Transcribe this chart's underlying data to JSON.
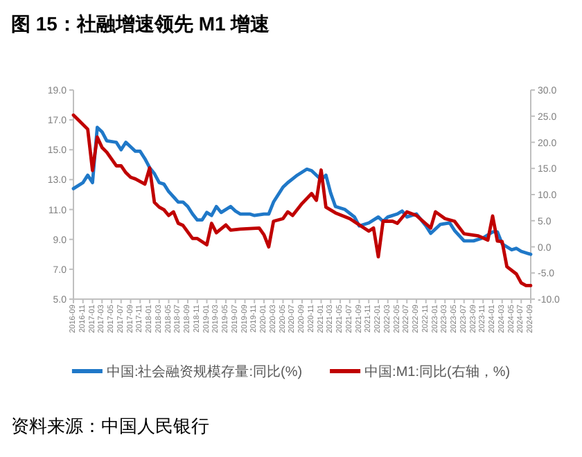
{
  "chart_data": {
    "type": "line",
    "title": "图 15：社融增速领先 M1 增速",
    "annotations": [
      "资料来源：中国人民银行"
    ],
    "legend": "bottom",
    "xlim": [
      "2016-09",
      "2024-09"
    ],
    "xticks": [
      {
        "value": "2016-09",
        "label": "2016-09"
      },
      {
        "value": "2016-11",
        "label": "2016-11"
      },
      {
        "value": "2017-01",
        "label": "2017-01"
      },
      {
        "value": "2017-03",
        "label": "2017-03"
      },
      {
        "value": "2017-05",
        "label": "2017-05"
      },
      {
        "value": "2017-07",
        "label": "2017-07"
      },
      {
        "value": "2017-09",
        "label": "2017-09"
      },
      {
        "value": "2017-11",
        "label": "2017-11"
      },
      {
        "value": "2018-01",
        "label": "2018-01"
      },
      {
        "value": "2018-03",
        "label": "2018-03"
      },
      {
        "value": "2018-05",
        "label": "2018-05"
      },
      {
        "value": "2018-07",
        "label": "2018-07"
      },
      {
        "value": "2018-09",
        "label": "2018-09"
      },
      {
        "value": "2018-11",
        "label": "2018-11"
      },
      {
        "value": "2019-01",
        "label": "2019-01"
      },
      {
        "value": "2019-03",
        "label": "2019-03"
      },
      {
        "value": "2019-05",
        "label": "2019-05"
      },
      {
        "value": "2019-07",
        "label": "2019-07"
      },
      {
        "value": "2019-09",
        "label": "2019-09"
      },
      {
        "value": "2019-11",
        "label": "2019-11"
      },
      {
        "value": "2020-01",
        "label": "2020-01"
      },
      {
        "value": "2020-03",
        "label": "2020-03"
      },
      {
        "value": "2020-05",
        "label": "2020-05"
      },
      {
        "value": "2020-07",
        "label": "2020-07"
      },
      {
        "value": "2020-09",
        "label": "2020-09"
      },
      {
        "value": "2020-11",
        "label": "2020-11"
      },
      {
        "value": "2021-01",
        "label": "2021-01"
      },
      {
        "value": "2021-03",
        "label": "2021-03"
      },
      {
        "value": "2021-05",
        "label": "2021-05"
      },
      {
        "value": "2021-07",
        "label": "2021-07"
      },
      {
        "value": "2021-09",
        "label": "2021-09"
      },
      {
        "value": "2021-11",
        "label": "2021-11"
      },
      {
        "value": "2022-01",
        "label": "2022-01"
      },
      {
        "value": "2022-03",
        "label": "2022-03"
      },
      {
        "value": "2022-05",
        "label": "2022-05"
      },
      {
        "value": "2022-07",
        "label": "2022-07"
      },
      {
        "value": "2022-09",
        "label": "2022-09"
      },
      {
        "value": "2022-11",
        "label": "2022-11"
      },
      {
        "value": "2023-01",
        "label": "2023-01"
      },
      {
        "value": "2023-03",
        "label": "2023-03"
      },
      {
        "value": "2023-05",
        "label": "2023-05"
      },
      {
        "value": "2023-07",
        "label": "2023-07"
      },
      {
        "value": "2023-09",
        "label": "2023-09"
      },
      {
        "value": "2023-11",
        "label": "2023-11"
      },
      {
        "value": "2024-01",
        "label": "2024-01"
      },
      {
        "value": "2024-03",
        "label": "2024-03"
      },
      {
        "value": "2024-05",
        "label": "2024-05"
      },
      {
        "value": "2024-07",
        "label": "2024-07"
      },
      {
        "value": "2024-09",
        "label": "2024-09"
      }
    ],
    "ylim": [
      5,
      19
    ],
    "yticks": [
      {
        "value": 5,
        "label": "5.0"
      },
      {
        "value": 7,
        "label": "7.0"
      },
      {
        "value": 9,
        "label": "9.0"
      },
      {
        "value": 11,
        "label": "11.0"
      },
      {
        "value": 13,
        "label": "13.0"
      },
      {
        "value": 15,
        "label": "15.0"
      },
      {
        "value": 17,
        "label": "17.0"
      },
      {
        "value": 19,
        "label": "19.0"
      }
    ],
    "y2lim": [
      -10,
      30
    ],
    "y2ticks": [
      {
        "value": -10,
        "label": "-10.0"
      },
      {
        "value": -5,
        "label": "-5.0"
      },
      {
        "value": 0,
        "label": "0.0"
      },
      {
        "value": 5,
        "label": "5.0"
      },
      {
        "value": 10,
        "label": "10.0"
      },
      {
        "value": 15,
        "label": "15.0"
      },
      {
        "value": 20,
        "label": "20.0"
      },
      {
        "value": 25,
        "label": "25.0"
      },
      {
        "value": 30,
        "label": "30.0"
      }
    ],
    "series": [
      {
        "name": "中国:社会融资规模存量:同比(%)",
        "color": "#1f78c8",
        "x": [
          "2016-09",
          "2016-11",
          "2016-12",
          "2017-01",
          "2017-02",
          "2017-03",
          "2017-04",
          "2017-06",
          "2017-07",
          "2017-08",
          "2017-10",
          "2017-11",
          "2017-12",
          "2018-01",
          "2018-02",
          "2018-03",
          "2018-04",
          "2018-05",
          "2018-07",
          "2018-08",
          "2018-09",
          "2018-10",
          "2018-11",
          "2018-12",
          "2019-01",
          "2019-02",
          "2019-03",
          "2019-04",
          "2019-06",
          "2019-07",
          "2019-08",
          "2019-10",
          "2019-11",
          "2020-01",
          "2020-02",
          "2020-03",
          "2020-04",
          "2020-05",
          "2020-06",
          "2020-08",
          "2020-10",
          "2020-11",
          "2020-12",
          "2021-01",
          "2021-02",
          "2021-03",
          "2021-04",
          "2021-06",
          "2021-08",
          "2021-09",
          "2021-11",
          "2022-01",
          "2022-02",
          "2022-03",
          "2022-05",
          "2022-06",
          "2022-07",
          "2022-09",
          "2022-11",
          "2022-12",
          "2023-02",
          "2023-04",
          "2023-05",
          "2023-07",
          "2023-09",
          "2023-11",
          "2024-01",
          "2024-02",
          "2024-03",
          "2024-04",
          "2024-05",
          "2024-06",
          "2024-07",
          "2024-09"
        ],
        "values": [
          12.4,
          12.8,
          13.3,
          12.8,
          16.5,
          16.2,
          15.6,
          15.5,
          15.0,
          15.5,
          14.9,
          14.9,
          14.4,
          13.8,
          13.4,
          12.8,
          12.7,
          12.2,
          11.5,
          11.5,
          11.2,
          10.7,
          10.3,
          10.3,
          10.8,
          10.6,
          11.2,
          10.8,
          11.2,
          10.9,
          10.7,
          10.7,
          10.6,
          10.7,
          10.7,
          11.5,
          12.0,
          12.5,
          12.8,
          13.3,
          13.7,
          13.6,
          13.3,
          13.0,
          13.3,
          12.1,
          11.2,
          11.0,
          10.5,
          9.9,
          10.1,
          10.5,
          10.2,
          10.5,
          10.7,
          10.9,
          10.5,
          10.7,
          9.9,
          9.4,
          10.0,
          10.1,
          9.6,
          8.9,
          8.9,
          9.1,
          9.5,
          9.5,
          8.7,
          8.5,
          8.3,
          8.4,
          8.2,
          8.0
        ]
      },
      {
        "name": "中国:M1:同比(右轴，%)",
        "color": "#c00000",
        "axis": "y2",
        "x": [
          "2016-09",
          "2016-10",
          "2016-12",
          "2017-01",
          "2017-02",
          "2017-03",
          "2017-04",
          "2017-06",
          "2017-07",
          "2017-08",
          "2017-09",
          "2017-10",
          "2017-12",
          "2018-01",
          "2018-02",
          "2018-03",
          "2018-04",
          "2018-05",
          "2018-06",
          "2018-07",
          "2018-08",
          "2018-10",
          "2018-11",
          "2019-01",
          "2019-02",
          "2019-03",
          "2019-05",
          "2019-06",
          "2019-08",
          "2019-12",
          "2020-01",
          "2020-02",
          "2020-03",
          "2020-05",
          "2020-06",
          "2020-07",
          "2020-09",
          "2020-11",
          "2020-12",
          "2021-01",
          "2021-02",
          "2021-04",
          "2021-07",
          "2021-10",
          "2021-11",
          "2021-12",
          "2022-01",
          "2022-02",
          "2022-04",
          "2022-05",
          "2022-07",
          "2022-09",
          "2022-12",
          "2023-01",
          "2023-03",
          "2023-05",
          "2023-07",
          "2023-10",
          "2023-12",
          "2024-01",
          "2024-02",
          "2024-03",
          "2024-04",
          "2024-06",
          "2024-07",
          "2024-08",
          "2024-09"
        ],
        "values": [
          25.2,
          24.3,
          22.5,
          14.6,
          21.0,
          19.0,
          18.1,
          15.5,
          15.5,
          14.2,
          13.3,
          13.0,
          12.0,
          15.1,
          8.5,
          7.6,
          7.1,
          6.0,
          6.7,
          4.5,
          4.1,
          1.6,
          1.6,
          0.4,
          4.5,
          2.7,
          4.2,
          3.2,
          3.4,
          3.6,
          2.3,
          0.0,
          4.9,
          5.4,
          6.7,
          6.0,
          8.3,
          10.2,
          8.9,
          14.7,
          7.6,
          6.5,
          5.4,
          3.6,
          3.0,
          3.6,
          -1.9,
          4.9,
          4.9,
          4.5,
          6.7,
          6.0,
          3.6,
          6.7,
          5.4,
          4.9,
          2.5,
          2.1,
          1.3,
          5.9,
          1.1,
          1.0,
          -3.8,
          -5.2,
          -6.9,
          -7.4,
          -7.4
        ]
      }
    ]
  }
}
